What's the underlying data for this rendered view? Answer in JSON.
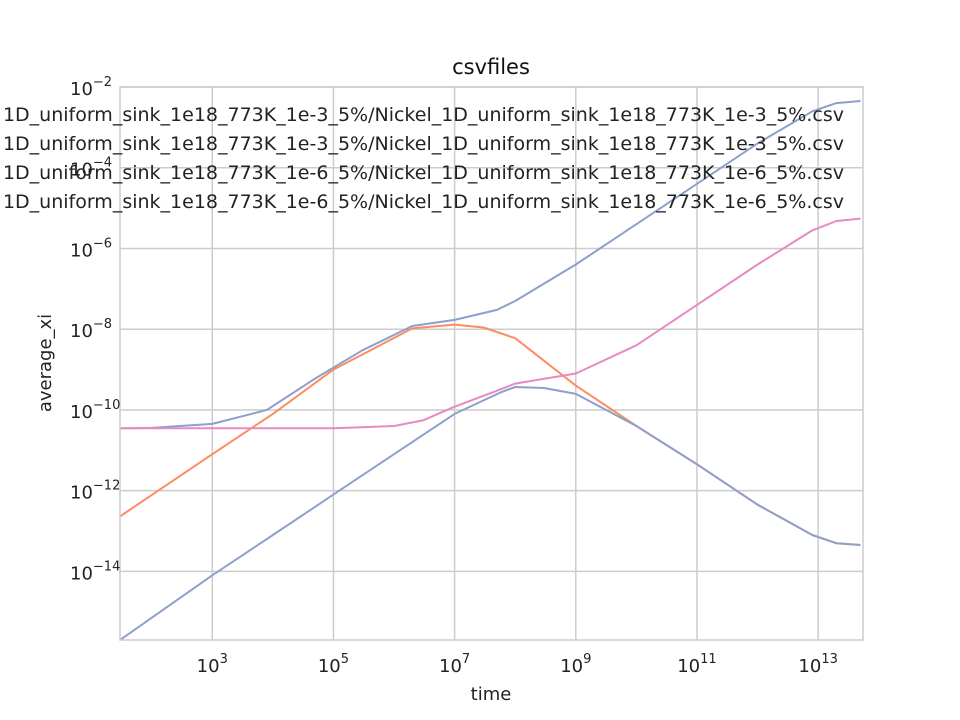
{
  "chart_data": {
    "type": "line",
    "title": "csvfiles",
    "xlabel": "time",
    "ylabel": "average_xi",
    "xscale": "log",
    "yscale": "log",
    "xlim": [
      30,
      55000000000000
    ],
    "ylim": [
      2e-16,
      0.01
    ],
    "grid": true,
    "legend_position": "upper-left",
    "x_tick_exponents": [
      3,
      5,
      7,
      9,
      11,
      13
    ],
    "y_tick_exponents": [
      -2,
      -4,
      -6,
      -8,
      -10,
      -12,
      -14
    ],
    "legend_entries": [
      "1D_uniform_sink_1e18_773K_1e-3_5%/Nickel_1D_uniform_sink_1e18_773K_1e-3_5%.csv",
      "1D_uniform_sink_1e18_773K_1e-3_5%/Nickel_1D_uniform_sink_1e18_773K_1e-3_5%.csv",
      "1D_uniform_sink_1e18_773K_1e-6_5%/Nickel_1D_uniform_sink_1e18_773K_1e-6_5%.csv",
      "1D_uniform_sink_1e18_773K_1e-6_5%/Nickel_1D_uniform_sink_1e18_773K_1e-6_5%.csv"
    ],
    "series": [
      {
        "color": "#8da0cb",
        "points": [
          [
            30,
            3.5e-11
          ],
          [
            100,
            3.6e-11
          ],
          [
            1000,
            4.5e-11
          ],
          [
            8000,
            1e-10
          ],
          [
            50000,
            6e-10
          ],
          [
            300000,
            3e-09
          ],
          [
            2000000,
            1.2e-08
          ],
          [
            10000000,
            1.7e-08
          ],
          [
            50000000,
            3e-08
          ],
          [
            100000000,
            5e-08
          ],
          [
            1000000000,
            4e-07
          ],
          [
            10000000000,
            4e-06
          ],
          [
            100000000000,
            4e-05
          ],
          [
            1000000000000,
            0.0004
          ],
          [
            8000000000000,
            0.0025
          ],
          [
            20000000000000,
            0.004
          ],
          [
            50000000000000,
            0.0045
          ]
        ]
      },
      {
        "color": "#fc8d62",
        "points": [
          [
            30,
            2.3e-13
          ],
          [
            1000,
            8e-12
          ],
          [
            10000,
            8e-11
          ],
          [
            100000,
            1e-09
          ],
          [
            2000000,
            1.05e-08
          ],
          [
            10000000,
            1.3e-08
          ],
          [
            30000000,
            1.1e-08
          ],
          [
            100000000,
            6e-09
          ],
          [
            1000000000,
            4e-10
          ],
          [
            10000000000,
            4e-11
          ],
          [
            100000000000,
            4.5e-12
          ],
          [
            1000000000000,
            4.5e-13
          ],
          [
            8000000000000,
            8e-14
          ],
          [
            20000000000000,
            5e-14
          ],
          [
            50000000000000,
            4.5e-14
          ]
        ]
      },
      {
        "color": "#8da0cb",
        "points": [
          [
            30,
            2e-16
          ],
          [
            1000,
            8e-15
          ],
          [
            10000,
            8e-14
          ],
          [
            100000,
            8e-13
          ],
          [
            1000000,
            8e-12
          ],
          [
            10000000,
            8e-11
          ],
          [
            60000000,
            2.8e-10
          ],
          [
            100000000,
            3.7e-10
          ],
          [
            300000000,
            3.5e-10
          ],
          [
            1000000000,
            2.5e-10
          ],
          [
            10000000000,
            4e-11
          ],
          [
            100000000000,
            4.5e-12
          ],
          [
            1000000000000,
            4.5e-13
          ],
          [
            8000000000000,
            8e-14
          ],
          [
            20000000000000,
            5e-14
          ],
          [
            50000000000000,
            4.5e-14
          ]
        ]
      },
      {
        "color": "#e78ac3",
        "points": [
          [
            30,
            3.5e-11
          ],
          [
            100000,
            3.5e-11
          ],
          [
            1000000,
            4e-11
          ],
          [
            3000000,
            5.5e-11
          ],
          [
            10000000,
            1.2e-10
          ],
          [
            50000000,
            3e-10
          ],
          [
            100000000,
            4.5e-10
          ],
          [
            1000000000,
            8e-10
          ],
          [
            10000000000,
            4e-09
          ],
          [
            100000000000,
            4e-08
          ],
          [
            1000000000000,
            4e-07
          ],
          [
            8000000000000,
            2.8e-06
          ],
          [
            20000000000000,
            4.8e-06
          ],
          [
            50000000000000,
            5.5e-06
          ]
        ]
      }
    ]
  }
}
